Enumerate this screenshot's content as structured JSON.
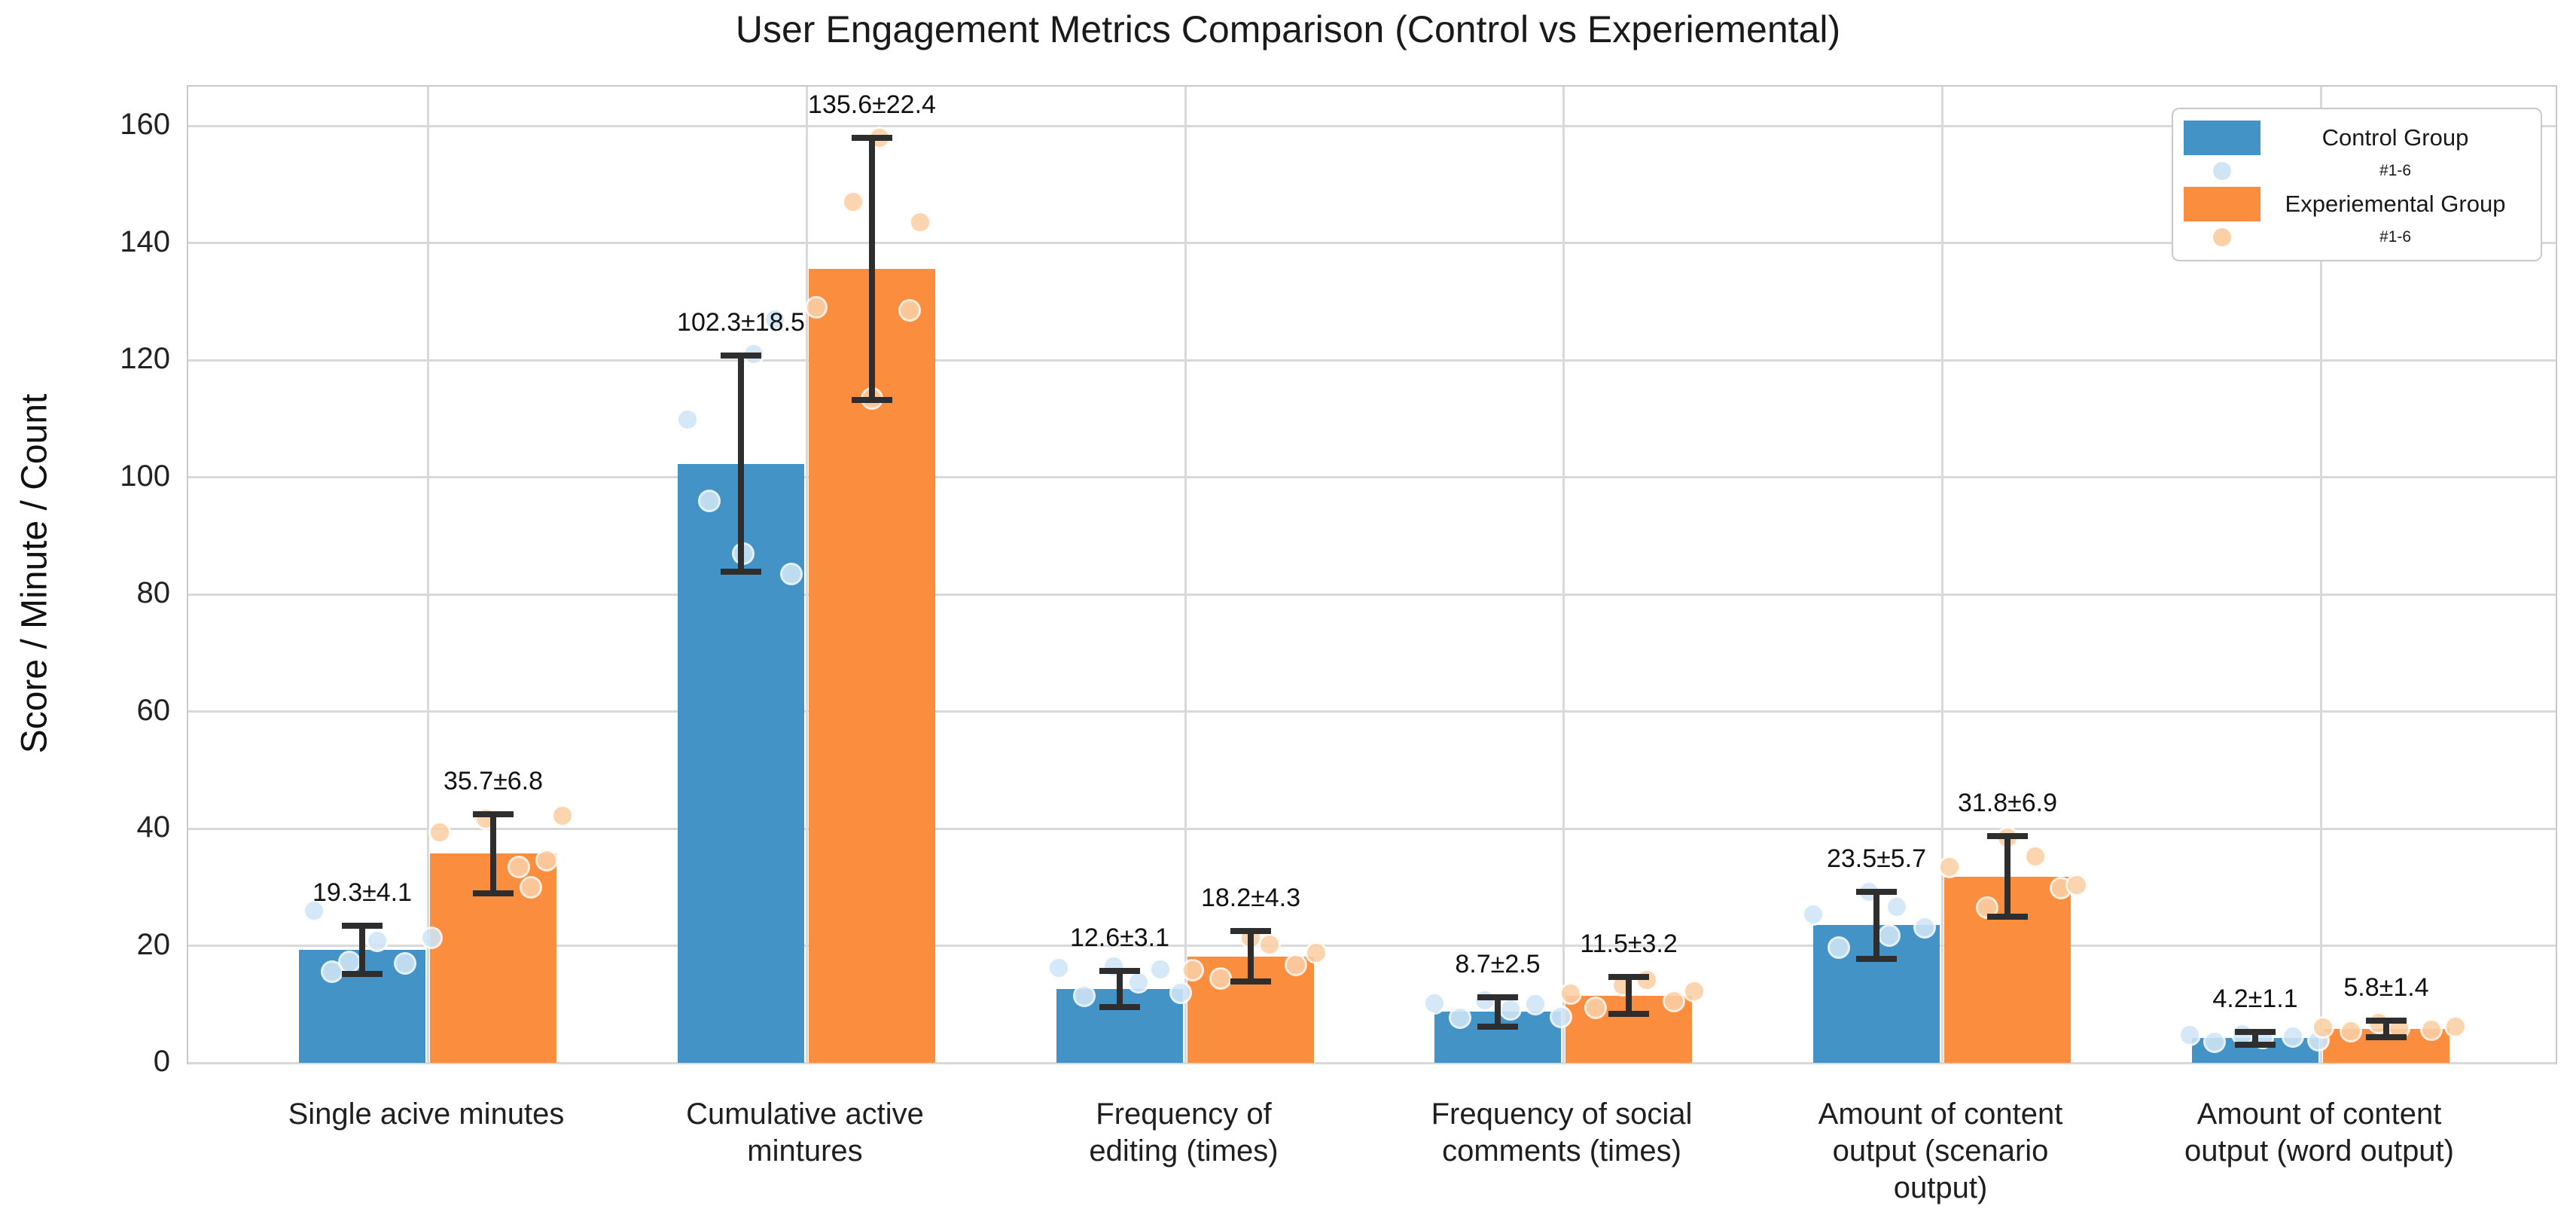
{
  "chart_data": {
    "type": "bar",
    "title": "User Engagement Metrics Comparison (Control vs Experiemental)",
    "ylabel": "Score / Minute / Count",
    "ylim": [
      0,
      166.7
    ],
    "yticks": [
      "0",
      "20",
      "40",
      "60",
      "80",
      "100",
      "120",
      "140",
      "160"
    ],
    "ytick_values": [
      0,
      20,
      40,
      60,
      80,
      100,
      120,
      140,
      160
    ],
    "grid": "both",
    "grid_color": "#d9d9d9",
    "error_bar_color": "#2e2e2e",
    "legend_position": "upper right",
    "categories": [
      "Single acive minutes",
      "Cumulative active\nmintures",
      "Frequency of\nediting (times)",
      "Frequency of social\ncomments (times)",
      "Amount of content\noutput (scenario\noutput)",
      "Amount of content\noutput (word output)"
    ],
    "legend": {
      "entries": [
        {
          "label": "Control Group",
          "sublabel": "#1-6",
          "swatch_color": "#4393c7",
          "dot_color": "#cfe5f6"
        },
        {
          "label": "Experiemental Group",
          "sublabel": "#1-6",
          "swatch_color": "#fb8d3e",
          "dot_color": "#fbd0a6"
        }
      ]
    },
    "series": [
      {
        "name": "Control Group",
        "color": "#4393c7",
        "point_color": "#cfe5f6",
        "means": [
          19.3,
          102.3,
          12.6,
          8.7,
          23.5,
          4.2
        ],
        "sds": [
          4.1,
          18.5,
          3.1,
          2.5,
          5.7,
          1.1
        ],
        "bar_labels": [
          "19.3±4.1",
          "102.3±18.5",
          "12.6±3.1",
          "8.7±2.5",
          "23.5±5.7",
          "4.2±1.1"
        ],
        "points": [
          [
            [
              -0.38,
              26.0
            ],
            [
              -0.1,
              17.3
            ],
            [
              -0.24,
              15.6
            ],
            [
              0.12,
              20.8
            ],
            [
              0.34,
              17.0
            ],
            [
              0.55,
              21.3
            ]
          ],
          [
            [
              -0.42,
              109.8
            ],
            [
              -0.25,
              96.0
            ],
            [
              0.1,
              121.0
            ],
            [
              0.27,
              127.0
            ],
            [
              0.02,
              87.0
            ],
            [
              0.4,
              83.5
            ]
          ],
          [
            [
              -0.48,
              16.2
            ],
            [
              -0.28,
              11.4
            ],
            [
              -0.05,
              16.5
            ],
            [
              0.15,
              13.8
            ],
            [
              0.32,
              16.0
            ],
            [
              0.48,
              12.0
            ]
          ],
          [
            [
              -0.5,
              10.2
            ],
            [
              -0.3,
              7.7
            ],
            [
              -0.1,
              10.7
            ],
            [
              0.1,
              9.1
            ],
            [
              0.3,
              10.0
            ],
            [
              0.5,
              7.8
            ]
          ],
          [
            [
              -0.5,
              25.3
            ],
            [
              -0.3,
              19.7
            ],
            [
              -0.06,
              29.2
            ],
            [
              0.16,
              26.6
            ],
            [
              0.38,
              23.2
            ],
            [
              0.1,
              21.8
            ]
          ],
          [
            [
              -0.52,
              4.7
            ],
            [
              -0.32,
              3.6
            ],
            [
              -0.1,
              4.9
            ],
            [
              0.06,
              4.2
            ],
            [
              0.3,
              4.5
            ],
            [
              0.5,
              3.8
            ]
          ]
        ]
      },
      {
        "name": "Experiemental Group",
        "color": "#fb8d3e",
        "point_color": "#fbd0a6",
        "means": [
          35.7,
          135.6,
          18.2,
          11.5,
          31.8,
          5.8
        ],
        "sds": [
          6.8,
          22.4,
          4.3,
          3.2,
          6.9,
          1.4
        ],
        "bar_labels": [
          "35.7±6.8",
          "135.6±22.4",
          "18.2±4.3",
          "11.5±3.2",
          "31.8±6.9",
          "5.8±1.4"
        ],
        "points": [
          [
            [
              -0.42,
              39.3
            ],
            [
              -0.06,
              41.7
            ],
            [
              0.2,
              33.5
            ],
            [
              0.42,
              34.6
            ],
            [
              0.55,
              42.2
            ],
            [
              0.3,
              30.0
            ]
          ],
          [
            [
              -0.15,
              147.0
            ],
            [
              0.06,
              158.0
            ],
            [
              0.38,
              143.5
            ],
            [
              -0.44,
              129.0
            ],
            [
              0.0,
              113.5
            ],
            [
              0.3,
              128.5
            ]
          ],
          [
            [
              -0.46,
              15.8
            ],
            [
              -0.24,
              14.4
            ],
            [
              0.0,
              21.4
            ],
            [
              0.15,
              20.2
            ],
            [
              0.36,
              16.7
            ],
            [
              0.52,
              18.8
            ]
          ],
          [
            [
              -0.46,
              11.8
            ],
            [
              -0.26,
              9.4
            ],
            [
              -0.05,
              13.2
            ],
            [
              0.14,
              14.1
            ],
            [
              0.36,
              10.5
            ],
            [
              0.52,
              12.2
            ]
          ],
          [
            [
              -0.46,
              33.5
            ],
            [
              -0.16,
              26.5
            ],
            [
              0.0,
              38.5
            ],
            [
              0.22,
              35.2
            ],
            [
              0.42,
              29.8
            ],
            [
              0.55,
              30.4
            ]
          ],
          [
            [
              -0.5,
              6.1
            ],
            [
              -0.28,
              5.4
            ],
            [
              -0.06,
              6.8
            ],
            [
              0.1,
              5.9
            ],
            [
              0.36,
              5.6
            ],
            [
              0.55,
              6.2
            ]
          ]
        ]
      }
    ]
  }
}
